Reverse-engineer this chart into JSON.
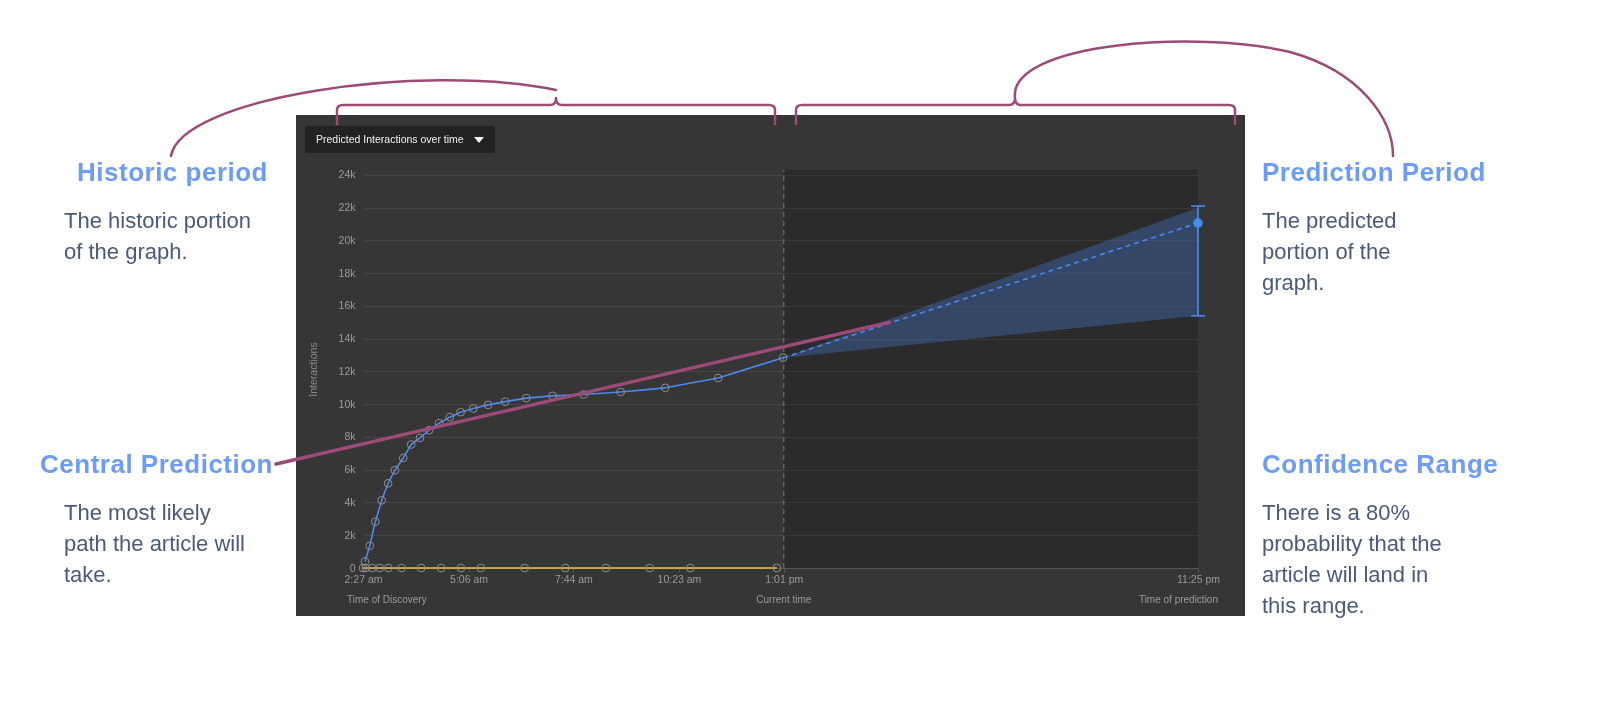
{
  "chart_data": {
    "type": "line",
    "title": "Predicted Interactions over time",
    "ylabel": "Interactions",
    "xlim": [
      2.45,
      23.417
    ],
    "xticks": [
      {
        "value": 2.45,
        "label": "2:27 am"
      },
      {
        "value": 5.1,
        "label": "5:06 am"
      },
      {
        "value": 7.733,
        "label": "7:44 am"
      },
      {
        "value": 10.383,
        "label": "10:23 am"
      },
      {
        "value": 13.017,
        "label": "1:01 pm"
      },
      {
        "value": 23.417,
        "label": "11:25 pm"
      }
    ],
    "ylim": [
      0,
      24300
    ],
    "yticks": [
      0,
      {
        "value": 2000,
        "label": "2k"
      },
      {
        "value": 4000,
        "label": "4k"
      },
      {
        "value": 6000,
        "label": "6k"
      },
      {
        "value": 8000,
        "label": "8k"
      },
      {
        "value": 10000,
        "label": "10k"
      },
      {
        "value": 12000,
        "label": "12k"
      },
      {
        "value": 14000,
        "label": "14k"
      },
      {
        "value": 16000,
        "label": "16k"
      },
      {
        "value": 18000,
        "label": "18k"
      },
      {
        "value": 20000,
        "label": "20k"
      },
      {
        "value": 22000,
        "label": "22k"
      },
      {
        "value": 24000,
        "label": "24k"
      }
    ],
    "grid": "y",
    "marker": "circle",
    "series": [
      {
        "type": "line",
        "color": "#4a89f3",
        "x": [
          2.5,
          2.62,
          2.76,
          2.92,
          3.08,
          3.25,
          3.46,
          3.66,
          3.88,
          4.11,
          4.36,
          4.63,
          4.9,
          5.22,
          5.59,
          6.02,
          6.55,
          7.21,
          7.99,
          8.92,
          10.04,
          11.37,
          13.0
        ],
        "values": [
          400,
          1360,
          2830,
          4130,
          5170,
          5970,
          6720,
          7540,
          7940,
          8410,
          8840,
          9210,
          9510,
          9740,
          9960,
          10160,
          10370,
          10510,
          10590,
          10750,
          11000,
          11600,
          12840
        ]
      },
      {
        "type": "line",
        "color": "#f4c542",
        "x": [
          2.45,
          2.52,
          2.68,
          2.87,
          3.09,
          3.42,
          3.91,
          4.41,
          4.91,
          5.41,
          6.51,
          7.53,
          8.55,
          9.65,
          10.67,
          12.84
        ],
        "values": [
          0,
          0,
          0,
          0,
          0,
          0,
          0,
          0,
          0,
          0,
          0,
          0,
          0,
          0,
          0,
          0
        ]
      },
      {
        "type": "line",
        "color": "#4a89f3",
        "line_style": "dashed",
        "marker": "none",
        "x": [
          13.0,
          23.417
        ],
        "values": [
          12840,
          21060
        ],
        "lower": [
          12840,
          15400
        ],
        "upper": [
          12840,
          22000
        ]
      },
      {
        "type": "scatter",
        "color": "#478bf6",
        "x": [
          23.417
        ],
        "values": [
          21060
        ],
        "errors": [
          [
            15400,
            22100
          ]
        ]
      }
    ],
    "ref_lines": [
      {
        "axis": "x",
        "value": 13.017,
        "label": "Current time",
        "line_style": "dashed"
      }
    ],
    "bands": [
      {
        "axis": "x",
        "from": 13.017,
        "to": 23.417
      }
    ],
    "annotations": [
      "Historic period",
      "The historic portion of the graph.",
      "Prediction Period",
      "The predicted portion of the graph.",
      {
        "text": "Central Prediction",
        "x": 15.67,
        "y": 15000
      },
      "The most likely path the article will take.",
      "Confidence Range",
      "There is a 80% probability that the article will land in this range.",
      "Time of Discovery",
      "Time of prediction"
    ]
  }
}
